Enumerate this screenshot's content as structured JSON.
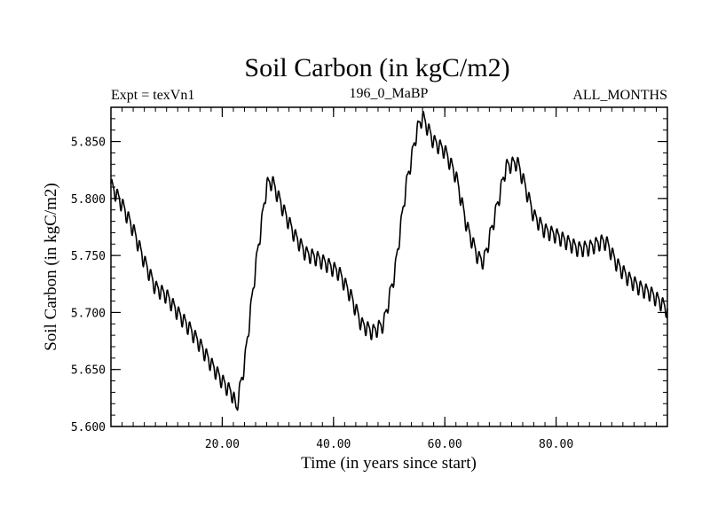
{
  "chart_data": {
    "type": "line",
    "title": "Soil Carbon (in kgC/m2)",
    "subtitle_left": "Expt = texVn1",
    "subtitle_center": "196_0_MaBP",
    "subtitle_right": "ALL_MONTHS",
    "xlabel": "Time (in years since start)",
    "ylabel": "Soil Carbon (in kgC/m2)",
    "xlim": [
      0,
      100
    ],
    "ylim": [
      5.6,
      5.88
    ],
    "x_ticks": [
      20,
      40,
      60,
      80
    ],
    "x_tick_labels": [
      "20.00",
      "40.00",
      "60.00",
      "80.00"
    ],
    "y_ticks": [
      5.6,
      5.65,
      5.7,
      5.75,
      5.8,
      5.85
    ],
    "y_tick_labels": [
      "5.600",
      "5.650",
      "5.700",
      "5.750",
      "5.800",
      "5.850"
    ],
    "series": [
      {
        "name": "Soil Carbon",
        "color": "#000000",
        "seasonal_amplitude": 0.006,
        "x": [
          0,
          2,
          4,
          6,
          8,
          10,
          12,
          14,
          16,
          18,
          20,
          22,
          22.5,
          24,
          26,
          28,
          29,
          31,
          33,
          35,
          37,
          39,
          41,
          43,
          45,
          47,
          49,
          51,
          53,
          55,
          56,
          58,
          60,
          62,
          64,
          66,
          67,
          69,
          71,
          73,
          74,
          76,
          78,
          80,
          82,
          84,
          86,
          88,
          89,
          91,
          93,
          95,
          97,
          99,
          100
        ],
        "values": [
          5.812,
          5.795,
          5.773,
          5.745,
          5.722,
          5.715,
          5.7,
          5.687,
          5.672,
          5.655,
          5.64,
          5.627,
          5.615,
          5.655,
          5.74,
          5.812,
          5.815,
          5.79,
          5.768,
          5.752,
          5.748,
          5.742,
          5.735,
          5.716,
          5.69,
          5.683,
          5.69,
          5.735,
          5.81,
          5.86,
          5.872,
          5.85,
          5.842,
          5.82,
          5.775,
          5.748,
          5.745,
          5.785,
          5.828,
          5.832,
          5.818,
          5.785,
          5.772,
          5.768,
          5.762,
          5.756,
          5.757,
          5.762,
          5.762,
          5.742,
          5.73,
          5.722,
          5.717,
          5.708,
          5.702
        ]
      }
    ]
  }
}
